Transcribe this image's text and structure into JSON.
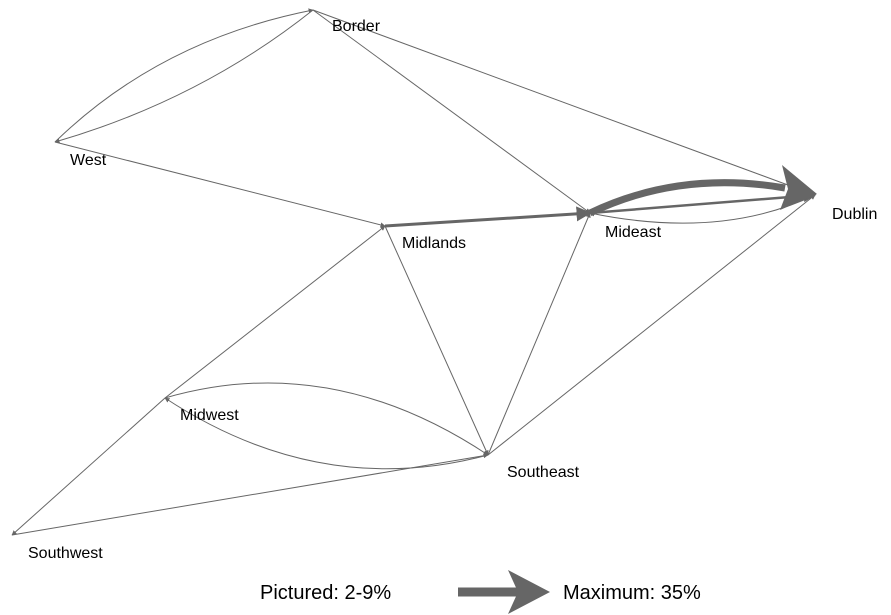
{
  "nodes": [
    {
      "label": "Border"
    },
    {
      "label": "West"
    },
    {
      "label": "Midlands"
    },
    {
      "label": "Mideast"
    },
    {
      "label": "Dublin"
    },
    {
      "label": "Midwest"
    },
    {
      "label": "Southeast"
    },
    {
      "label": "Southwest"
    }
  ],
  "legend": {
    "pictured": "Pictured: 2-9%",
    "maximum": "Maximum: 35%"
  }
}
